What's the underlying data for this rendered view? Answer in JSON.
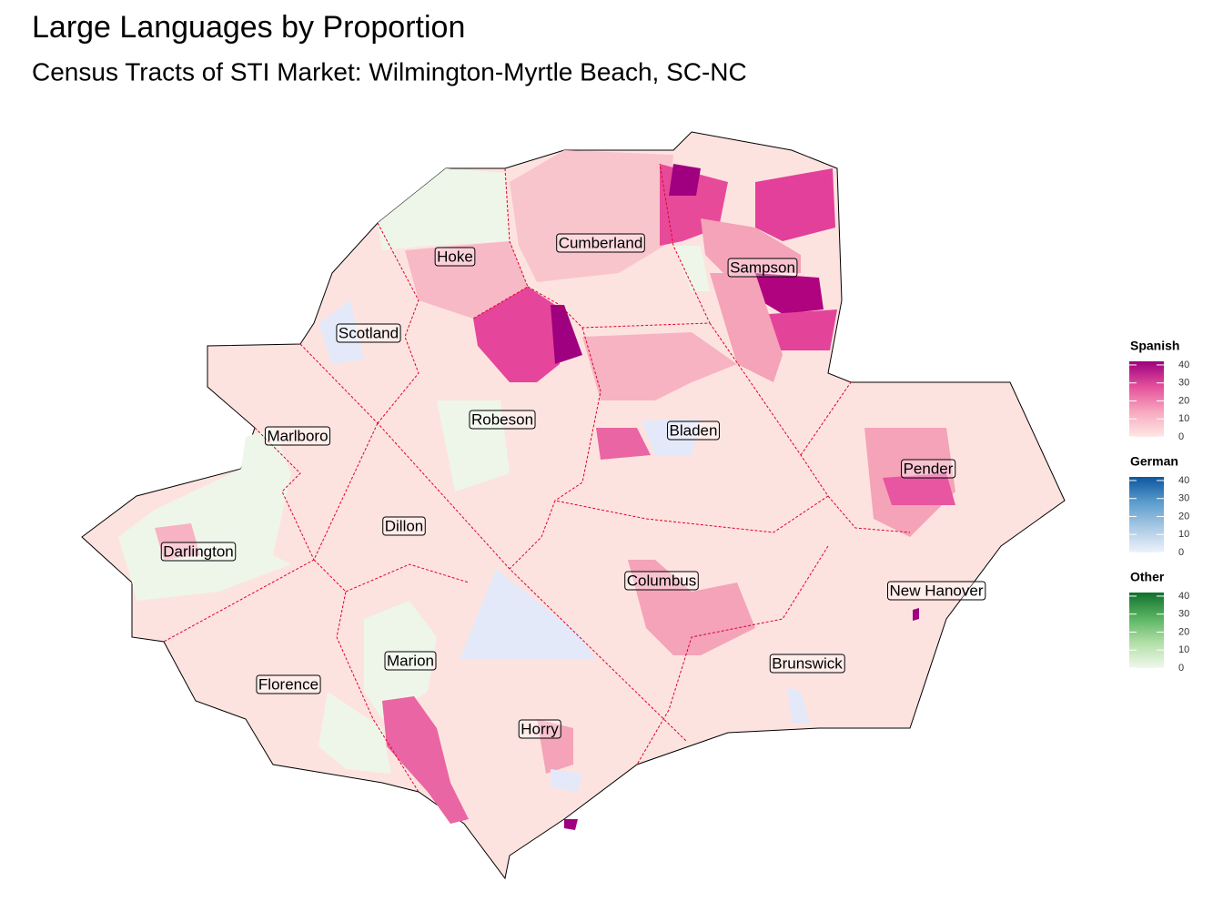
{
  "title": "Large Languages by Proportion",
  "subtitle": "Census Tracts of STI Market: Wilmington-Myrtle Beach, SC-NC",
  "counties": [
    "Cumberland",
    "Hoke",
    "Sampson",
    "Scotland",
    "Robeson",
    "Bladen",
    "Marlboro",
    "Pender",
    "Dillon",
    "Darlington",
    "Columbus",
    "New Hanover",
    "Marion",
    "Brunswick",
    "Florence",
    "Horry"
  ],
  "legends": [
    {
      "title": "Spanish",
      "lim": [
        0,
        42
      ],
      "ticks": [
        0,
        10,
        20,
        30,
        40
      ],
      "colors": [
        "#fde8e4",
        "#f7a8bf",
        "#e4509b",
        "#9e007f"
      ]
    },
    {
      "title": "German",
      "lim": [
        0,
        42
      ],
      "ticks": [
        0,
        10,
        20,
        30,
        40
      ],
      "colors": [
        "#eef2fb",
        "#a9c9e4",
        "#5a9ccd",
        "#0d56a0"
      ]
    },
    {
      "title": "Other",
      "lim": [
        0,
        42
      ],
      "ticks": [
        0,
        10,
        20,
        30,
        40
      ],
      "colors": [
        "#f0f8ec",
        "#b2dfa8",
        "#58b461",
        "#11702f"
      ]
    }
  ]
}
